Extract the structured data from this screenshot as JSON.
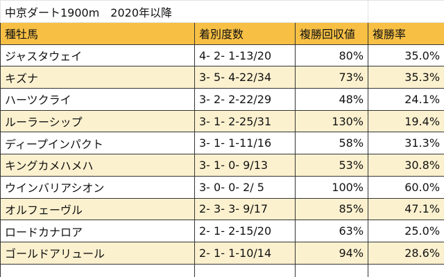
{
  "title": "中京ダート1900m　2020年以降",
  "table": {
    "header": [
      "種牡馬",
      "着別度数",
      "複勝回収値",
      "複勝率"
    ],
    "rows": [
      [
        "ジャスタウェイ",
        "4- 2- 1-13/20",
        "80%",
        "35.0%"
      ],
      [
        "キズナ",
        "3- 5- 4-22/34",
        "73%",
        "35.3%"
      ],
      [
        "ハーツクライ",
        "3- 2- 2-22/29",
        "48%",
        "24.1%"
      ],
      [
        "ルーラーシップ",
        "3- 1- 2-25/31",
        "130%",
        "19.4%"
      ],
      [
        "ディープインパクト",
        "3- 1- 1-11/16",
        "58%",
        "31.3%"
      ],
      [
        "キングカメハメハ",
        "3- 1- 0- 9/13",
        "53%",
        "30.8%"
      ],
      [
        "ウインバリアシオン",
        "3- 0- 0- 2/ 5",
        "100%",
        "60.0%"
      ],
      [
        "オルフェーヴル",
        "2- 3- 3- 9/17",
        "85%",
        "47.1%"
      ],
      [
        "ロードカナロア",
        "2- 1- 2-15/20",
        "63%",
        "25.0%"
      ],
      [
        "ゴールドアリュール",
        "2- 1- 1-10/14",
        "94%",
        "28.6%"
      ]
    ]
  }
}
